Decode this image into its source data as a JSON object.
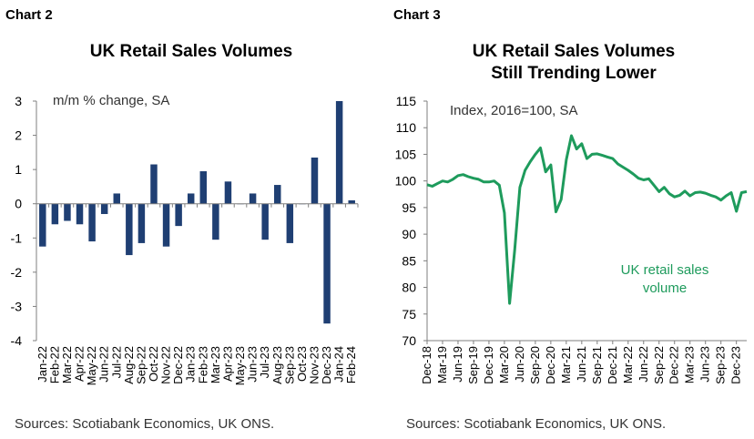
{
  "left_panel": {
    "label": "Chart 2",
    "title": "UK Retail Sales Volumes",
    "unit_note": "m/m % change, SA",
    "source": "Sources: Scotiabank Economics, UK ONS."
  },
  "right_panel": {
    "label": "Chart 3",
    "title_line1": "UK Retail Sales Volumes",
    "title_line2": "Still Trending Lower",
    "unit_note": "Index, 2016=100, SA",
    "series_annotation_line1": "UK retail sales",
    "series_annotation_line2": "volume",
    "source": "Sources: Scotiabank Economics, UK ONS."
  },
  "chart_data": [
    {
      "type": "bar",
      "title": "UK Retail Sales Volumes",
      "ylabel": "m/m % change, SA",
      "ylim": [
        -4,
        3
      ],
      "yticks": [
        3,
        2,
        1,
        0,
        -1,
        -2,
        -3,
        -4
      ],
      "grid": false,
      "color": "#1f3f73",
      "categories": [
        "Jan-22",
        "Feb-22",
        "Mar-22",
        "Apr-22",
        "May-22",
        "Jun-22",
        "Jul-22",
        "Aug-22",
        "Sep-22",
        "Oct-22",
        "Nov-22",
        "Dec-22",
        "Jan-23",
        "Feb-23",
        "Mar-23",
        "Apr-23",
        "May-23",
        "Jun-23",
        "Jul-23",
        "Aug-23",
        "Sep-23",
        "Oct-23",
        "Nov-23",
        "Dec-23",
        "Jan-24",
        "Feb-24"
      ],
      "xtick_labels": [
        "Jan-22",
        "Feb-22",
        "Mar-22",
        "Apr-22",
        "May-22",
        "Jun-22",
        "Jul-22",
        "Aug-22",
        "Sep-22",
        "Oct-22",
        "Nov-22",
        "Dec-22",
        "Jan-23",
        "Feb-23",
        "Mar-23",
        "Apr-23",
        "May-23",
        "Jun-23",
        "Jul-23",
        "Aug-23",
        "Sep-23",
        "Oct-23",
        "Nov-23",
        "Dec-23",
        "Jan-24",
        "Feb-24"
      ],
      "values": [
        -1.25,
        -0.6,
        -0.5,
        -0.6,
        -1.1,
        -0.3,
        0.3,
        -1.5,
        -1.15,
        1.15,
        -1.25,
        -0.65,
        0.3,
        0.95,
        -1.05,
        0.65,
        0.0,
        0.3,
        -1.05,
        0.55,
        -1.15,
        0.0,
        1.35,
        -3.5,
        3.0,
        0.1
      ]
    },
    {
      "type": "line",
      "title": "UK Retail Sales Volumes Still Trending Lower",
      "ylabel": "Index, 2016=100, SA",
      "ylim": [
        70,
        115
      ],
      "yticks": [
        115,
        110,
        105,
        100,
        95,
        90,
        85,
        80,
        75,
        70
      ],
      "grid": false,
      "color": "#1e9b5c",
      "xtick_labels": [
        "Dec-18",
        "Mar-19",
        "Jun-19",
        "Sep-19",
        "Dec-19",
        "Mar-20",
        "Jun-20",
        "Sep-20",
        "Dec-20",
        "Mar-21",
        "Jun-21",
        "Sep-21",
        "Dec-21",
        "Mar-22",
        "Jun-22",
        "Sep-22",
        "Dec-22",
        "Mar-23",
        "Jun-23",
        "Sep-23",
        "Dec-23"
      ],
      "series": [
        {
          "name": "UK retail sales volume",
          "x": [
            "Dec-18",
            "Jan-19",
            "Feb-19",
            "Mar-19",
            "Apr-19",
            "May-19",
            "Jun-19",
            "Jul-19",
            "Aug-19",
            "Sep-19",
            "Oct-19",
            "Nov-19",
            "Dec-19",
            "Jan-20",
            "Feb-20",
            "Mar-20",
            "Apr-20",
            "May-20",
            "Jun-20",
            "Jul-20",
            "Aug-20",
            "Sep-20",
            "Oct-20",
            "Nov-20",
            "Dec-20",
            "Jan-21",
            "Feb-21",
            "Mar-21",
            "Apr-21",
            "May-21",
            "Jun-21",
            "Jul-21",
            "Aug-21",
            "Sep-21",
            "Oct-21",
            "Nov-21",
            "Dec-21",
            "Jan-22",
            "Feb-22",
            "Mar-22",
            "Apr-22",
            "May-22",
            "Jun-22",
            "Jul-22",
            "Aug-22",
            "Sep-22",
            "Oct-22",
            "Nov-22",
            "Dec-22",
            "Jan-23",
            "Feb-23",
            "Mar-23",
            "Apr-23",
            "May-23",
            "Jun-23",
            "Jul-23",
            "Aug-23",
            "Sep-23",
            "Oct-23",
            "Nov-23",
            "Dec-23",
            "Jan-24",
            "Feb-24"
          ],
          "values": [
            99.3,
            99.0,
            99.5,
            100.0,
            99.8,
            100.3,
            101.0,
            101.2,
            100.8,
            100.5,
            100.3,
            99.8,
            99.8,
            100.0,
            99.2,
            94.0,
            77.0,
            87.0,
            98.8,
            102.0,
            103.6,
            105.0,
            106.2,
            101.7,
            103.0,
            94.2,
            96.5,
            104.0,
            108.5,
            106.0,
            107.0,
            104.2,
            105.0,
            105.1,
            104.8,
            104.5,
            104.2,
            103.2,
            102.6,
            102.0,
            101.3,
            100.5,
            100.2,
            100.4,
            99.2,
            98.0,
            98.8,
            97.6,
            97.0,
            97.3,
            98.1,
            97.2,
            97.8,
            97.9,
            97.7,
            97.3,
            97.0,
            96.4,
            97.2,
            97.8,
            94.3,
            97.8,
            98.0
          ]
        }
      ]
    }
  ]
}
